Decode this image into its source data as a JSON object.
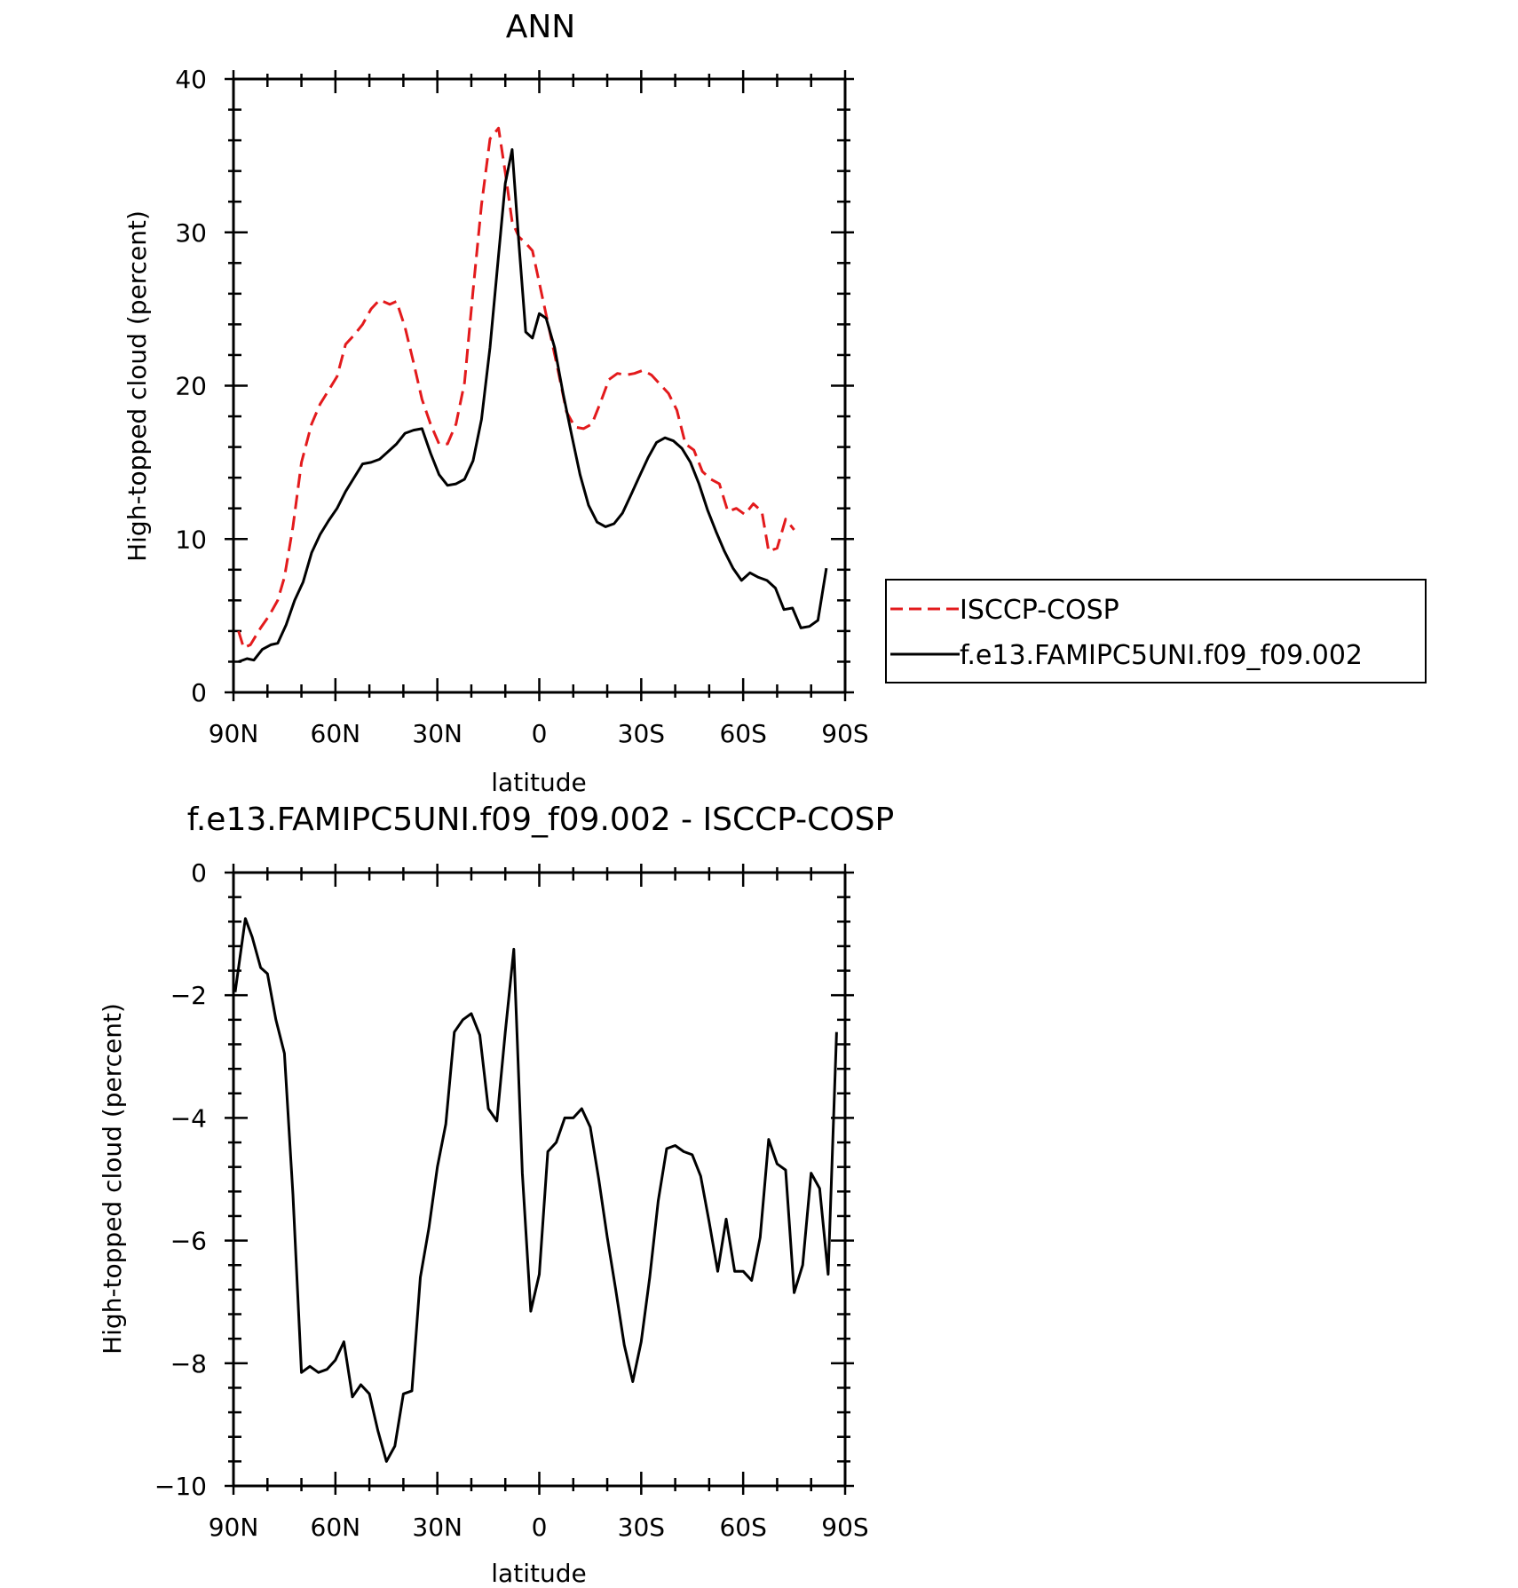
{
  "chart_data": [
    {
      "type": "line",
      "title": "ANN",
      "xlabel": "latitude",
      "ylabel": "High-topped cloud (percent)",
      "ylim": [
        0,
        40
      ],
      "xlim": [
        90,
        -90
      ],
      "xticks": [
        {
          "value": 90,
          "label": "90N"
        },
        {
          "value": 60,
          "label": "60N"
        },
        {
          "value": 30,
          "label": "30N"
        },
        {
          "value": 0,
          "label": "0"
        },
        {
          "value": -30,
          "label": "30S"
        },
        {
          "value": -60,
          "label": "60S"
        },
        {
          "value": -90,
          "label": "90S"
        }
      ],
      "yticks": [
        {
          "value": 0,
          "label": "0"
        },
        {
          "value": 10,
          "label": "10"
        },
        {
          "value": 20,
          "label": "20"
        },
        {
          "value": 30,
          "label": "30"
        },
        {
          "value": 40,
          "label": "40"
        }
      ],
      "legend": "right",
      "series": [
        {
          "name": "ISCCP-COSP",
          "color": "#e31a1c",
          "dash": "dashed",
          "points": [
            [
              88.5,
              4.0
            ],
            [
              87,
              2.9
            ],
            [
              85,
              3.1
            ],
            [
              82,
              4.2
            ],
            [
              79.5,
              5.0
            ],
            [
              77,
              6.0
            ],
            [
              75,
              7.5
            ],
            [
              72.5,
              10.8
            ],
            [
              70,
              15.0
            ],
            [
              67,
              17.5
            ],
            [
              64.5,
              18.8
            ],
            [
              62,
              19.7
            ],
            [
              59.5,
              20.6
            ],
            [
              57,
              22.7
            ],
            [
              54.5,
              23.3
            ],
            [
              52,
              24.0
            ],
            [
              49.5,
              25.0
            ],
            [
              47,
              25.6
            ],
            [
              44,
              25.3
            ],
            [
              42,
              25.5
            ],
            [
              39.5,
              23.8
            ],
            [
              37,
              21.5
            ],
            [
              34.5,
              19.1
            ],
            [
              32,
              17.5
            ],
            [
              29.5,
              16.2
            ],
            [
              27,
              16.2
            ],
            [
              24.5,
              17.5
            ],
            [
              22,
              20.2
            ],
            [
              19.5,
              26.2
            ],
            [
              17,
              31.8
            ],
            [
              14.5,
              36.1
            ],
            [
              12,
              36.8
            ],
            [
              10,
              33.9
            ],
            [
              8,
              30.7
            ],
            [
              6,
              29.7
            ],
            [
              4,
              29.3
            ],
            [
              2,
              28.8
            ],
            [
              -0.5,
              26.2
            ],
            [
              -3,
              23.6
            ],
            [
              -5.5,
              21.0
            ],
            [
              -8,
              18.3
            ],
            [
              -10.5,
              17.3
            ],
            [
              -13,
              17.2
            ],
            [
              -15.5,
              17.5
            ],
            [
              -18,
              18.9
            ],
            [
              -20.5,
              20.4
            ],
            [
              -23,
              20.8
            ],
            [
              -25.5,
              20.7
            ],
            [
              -28,
              20.8
            ],
            [
              -30.5,
              21.0
            ],
            [
              -33,
              20.7
            ],
            [
              -35.5,
              20.1
            ],
            [
              -38,
              19.5
            ],
            [
              -40.5,
              18.4
            ],
            [
              -43,
              16.2
            ],
            [
              -45.5,
              15.8
            ],
            [
              -48,
              14.4
            ],
            [
              -50.5,
              13.9
            ],
            [
              -53,
              13.6
            ],
            [
              -55.5,
              11.8
            ],
            [
              -58,
              12.0
            ],
            [
              -60.5,
              11.6
            ],
            [
              -63,
              12.3
            ],
            [
              -65.5,
              11.8
            ],
            [
              -67.5,
              9.2
            ],
            [
              -70,
              9.4
            ],
            [
              -72.5,
              11.3
            ],
            [
              -75,
              10.6
            ]
          ]
        },
        {
          "name": "f.e13.FAMIPC5UNI.f09_f09.002",
          "color": "#000000",
          "dash": "solid",
          "points": [
            [
              88.5,
              2.0
            ],
            [
              86,
              2.2
            ],
            [
              84,
              2.1
            ],
            [
              81.5,
              2.8
            ],
            [
              79,
              3.1
            ],
            [
              77,
              3.2
            ],
            [
              74.5,
              4.4
            ],
            [
              72,
              6.0
            ],
            [
              69.5,
              7.2
            ],
            [
              67,
              9.1
            ],
            [
              64.5,
              10.3
            ],
            [
              62,
              11.2
            ],
            [
              59.5,
              12.0
            ],
            [
              57,
              13.1
            ],
            [
              54.5,
              14.0
            ],
            [
              52,
              14.9
            ],
            [
              49.5,
              15.0
            ],
            [
              47,
              15.2
            ],
            [
              44.5,
              15.7
            ],
            [
              42,
              16.2
            ],
            [
              39.5,
              16.9
            ],
            [
              37,
              17.1
            ],
            [
              34.5,
              17.2
            ],
            [
              32,
              15.6
            ],
            [
              29.5,
              14.2
            ],
            [
              27,
              13.5
            ],
            [
              24.5,
              13.6
            ],
            [
              22,
              13.9
            ],
            [
              19.5,
              15.1
            ],
            [
              17,
              17.8
            ],
            [
              14.5,
              22.5
            ],
            [
              12,
              28.5
            ],
            [
              10,
              33.2
            ],
            [
              8,
              35.4
            ],
            [
              6,
              29.3
            ],
            [
              4,
              23.5
            ],
            [
              2,
              23.1
            ],
            [
              0,
              24.7
            ],
            [
              -2,
              24.4
            ],
            [
              -4.5,
              22.5
            ],
            [
              -7,
              19.5
            ],
            [
              -9.5,
              16.8
            ],
            [
              -12,
              14.2
            ],
            [
              -14.5,
              12.2
            ],
            [
              -17,
              11.1
            ],
            [
              -19.5,
              10.8
            ],
            [
              -22,
              11.0
            ],
            [
              -24.5,
              11.7
            ],
            [
              -27,
              12.9
            ],
            [
              -29.5,
              14.1
            ],
            [
              -32,
              15.3
            ],
            [
              -34.5,
              16.3
            ],
            [
              -37,
              16.6
            ],
            [
              -39.5,
              16.4
            ],
            [
              -42,
              15.9
            ],
            [
              -44.5,
              15.0
            ],
            [
              -47,
              13.6
            ],
            [
              -49.5,
              11.9
            ],
            [
              -52,
              10.5
            ],
            [
              -54.5,
              9.2
            ],
            [
              -57,
              8.1
            ],
            [
              -59.5,
              7.3
            ],
            [
              -62,
              7.8
            ],
            [
              -64.5,
              7.5
            ],
            [
              -67,
              7.3
            ],
            [
              -69.5,
              6.8
            ],
            [
              -72,
              5.4
            ],
            [
              -74.5,
              5.5
            ],
            [
              -77,
              4.2
            ],
            [
              -79.5,
              4.3
            ],
            [
              -82,
              4.7
            ],
            [
              -84.5,
              8.1
            ]
          ]
        }
      ]
    },
    {
      "type": "line",
      "title": "f.e13.FAMIPC5UNI.f09_f09.002 - ISCCP-COSP",
      "xlabel": "latitude",
      "ylabel": "High-topped cloud (percent)",
      "ylim": [
        -10,
        0
      ],
      "xlim": [
        90,
        -90
      ],
      "xticks": [
        {
          "value": 90,
          "label": "90N"
        },
        {
          "value": 60,
          "label": "60N"
        },
        {
          "value": 30,
          "label": "30N"
        },
        {
          "value": 0,
          "label": "0"
        },
        {
          "value": -30,
          "label": "30S"
        },
        {
          "value": -60,
          "label": "60S"
        },
        {
          "value": -90,
          "label": "90S"
        }
      ],
      "yticks": [
        {
          "value": 0,
          "label": "0"
        },
        {
          "value": -2,
          "label": "−2"
        },
        {
          "value": -4,
          "label": "−4"
        },
        {
          "value": -6,
          "label": "−6"
        },
        {
          "value": -8,
          "label": "−8"
        },
        {
          "value": -10,
          "label": "−10"
        }
      ],
      "series": [
        {
          "color": "#000000",
          "dash": "solid",
          "points": [
            [
              89.5,
              -1.95
            ],
            [
              86.5,
              -0.75
            ],
            [
              84.5,
              -1.05
            ],
            [
              82,
              -1.55
            ],
            [
              80,
              -1.65
            ],
            [
              77.5,
              -2.4
            ],
            [
              75,
              -2.95
            ],
            [
              72.5,
              -5.25
            ],
            [
              70,
              -8.15
            ],
            [
              67.5,
              -8.05
            ],
            [
              65,
              -8.15
            ],
            [
              62.5,
              -8.1
            ],
            [
              60,
              -7.95
            ],
            [
              57.5,
              -7.65
            ],
            [
              55,
              -8.55
            ],
            [
              52.5,
              -8.35
            ],
            [
              50,
              -8.5
            ],
            [
              47.5,
              -9.1
            ],
            [
              45,
              -9.6
            ],
            [
              42.5,
              -9.35
            ],
            [
              40,
              -8.5
            ],
            [
              37.5,
              -8.45
            ],
            [
              35,
              -6.6
            ],
            [
              32.5,
              -5.8
            ],
            [
              30,
              -4.8
            ],
            [
              27.5,
              -4.1
            ],
            [
              25,
              -2.6
            ],
            [
              22.5,
              -2.4
            ],
            [
              20,
              -2.3
            ],
            [
              17.5,
              -2.65
            ],
            [
              15,
              -3.85
            ],
            [
              12.5,
              -4.05
            ],
            [
              10,
              -2.6
            ],
            [
              7.5,
              -1.25
            ],
            [
              5,
              -4.9
            ],
            [
              2.5,
              -7.15
            ],
            [
              0,
              -6.55
            ],
            [
              -2.5,
              -4.55
            ],
            [
              -5,
              -4.4
            ],
            [
              -7.5,
              -4.0
            ],
            [
              -10,
              -4.0
            ],
            [
              -12.5,
              -3.85
            ],
            [
              -15,
              -4.15
            ],
            [
              -17.5,
              -5.0
            ],
            [
              -20,
              -5.95
            ],
            [
              -22.5,
              -6.8
            ],
            [
              -25,
              -7.7
            ],
            [
              -27.5,
              -8.3
            ],
            [
              -30,
              -7.65
            ],
            [
              -32.5,
              -6.6
            ],
            [
              -35,
              -5.35
            ],
            [
              -37.5,
              -4.5
            ],
            [
              -40,
              -4.45
            ],
            [
              -42.5,
              -4.55
            ],
            [
              -45,
              -4.6
            ],
            [
              -47.5,
              -4.95
            ],
            [
              -50,
              -5.7
            ],
            [
              -52.5,
              -6.5
            ],
            [
              -55,
              -5.65
            ],
            [
              -57.5,
              -6.5
            ],
            [
              -60,
              -6.5
            ],
            [
              -62.5,
              -6.65
            ],
            [
              -65,
              -5.95
            ],
            [
              -67.5,
              -4.35
            ],
            [
              -70,
              -4.75
            ],
            [
              -72.5,
              -4.85
            ],
            [
              -75,
              -6.85
            ],
            [
              -77.5,
              -6.4
            ],
            [
              -80,
              -4.9
            ],
            [
              -82.5,
              -5.15
            ],
            [
              -85,
              -6.55
            ],
            [
              -87.5,
              -2.6
            ]
          ]
        }
      ]
    }
  ]
}
